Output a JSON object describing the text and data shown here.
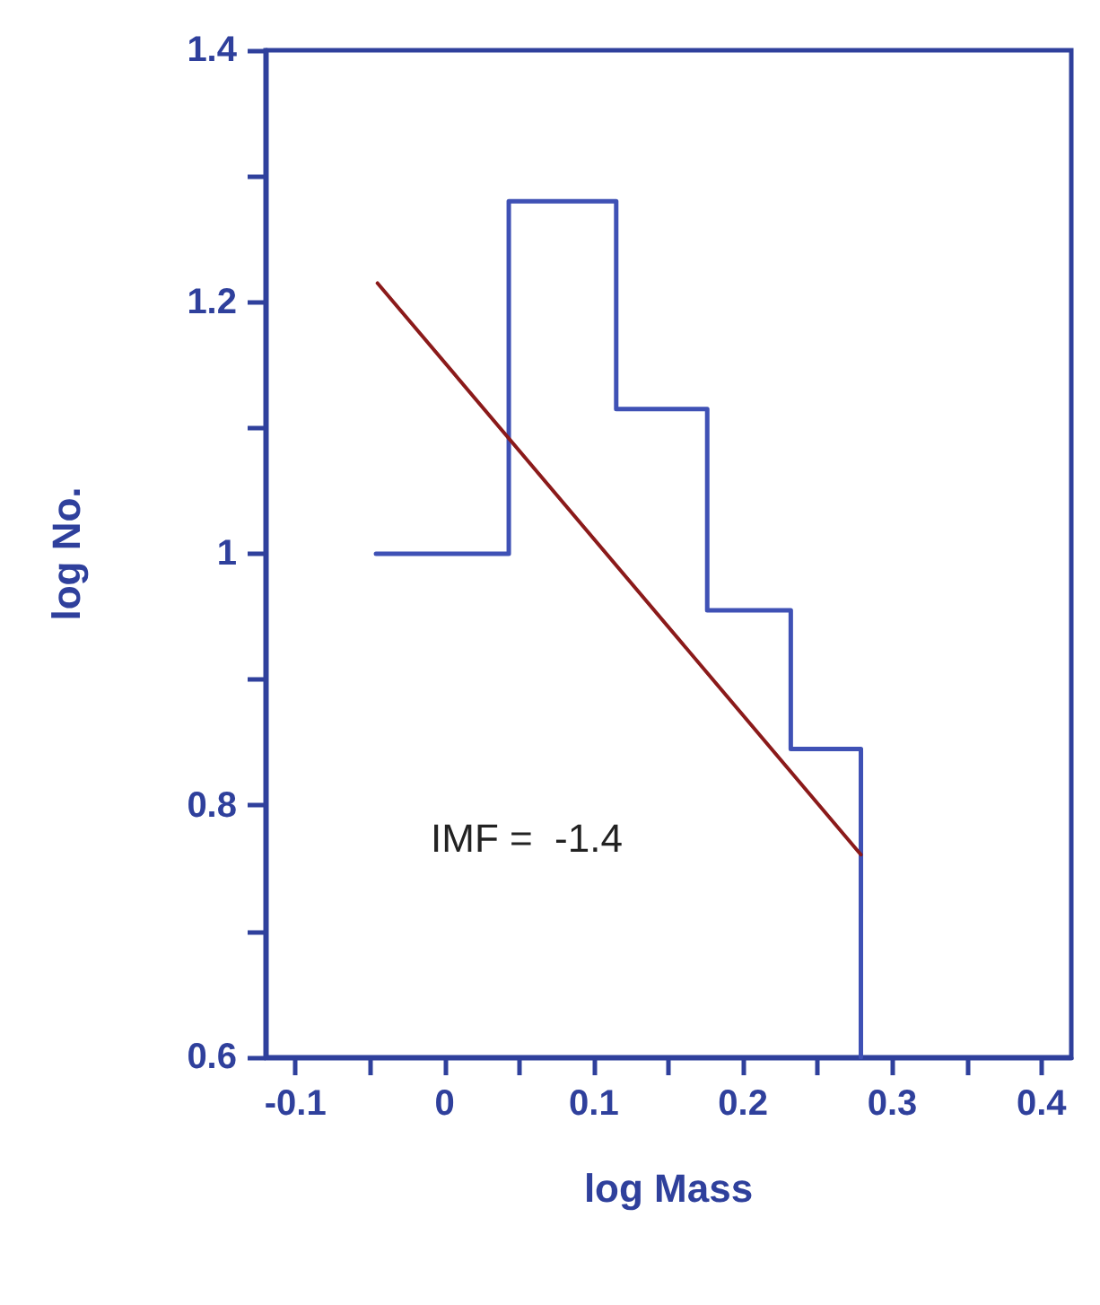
{
  "chart_data": {
    "type": "step",
    "xlabel": "log Mass",
    "ylabel": "log No.",
    "xlim": [
      -0.12,
      0.42
    ],
    "ylim": [
      0.6,
      1.4
    ],
    "xticks": [
      -0.1,
      {
        "value": -0.05,
        "label": null
      },
      0,
      {
        "value": 0.05,
        "label": null
      },
      0.1,
      {
        "value": 0.15,
        "label": null
      },
      0.2,
      {
        "value": 0.25,
        "label": null
      },
      0.3,
      {
        "value": 0.35,
        "label": null
      },
      0.4
    ],
    "yticks": [
      0.6,
      {
        "value": 0.7,
        "label": null
      },
      0.8,
      {
        "value": 0.9,
        "label": null
      },
      1,
      {
        "value": 1.1,
        "label": null
      },
      1.2,
      {
        "value": 1.3,
        "label": null
      },
      1.4
    ],
    "annotations": [
      "IMF =  -1.4"
    ],
    "series": [
      {
        "color": "#3f51b5",
        "x": [
          -0.046,
          0.043,
          0.115,
          0.176,
          0.232,
          0.279
        ],
        "values": [
          1.0,
          1.28,
          1.115,
          0.955,
          0.845,
          0.6
        ]
      },
      {
        "type": "line",
        "color": "#8b1a1a",
        "x": [
          -0.045,
          0.279
        ],
        "values": [
          1.215,
          0.761
        ]
      }
    ]
  }
}
